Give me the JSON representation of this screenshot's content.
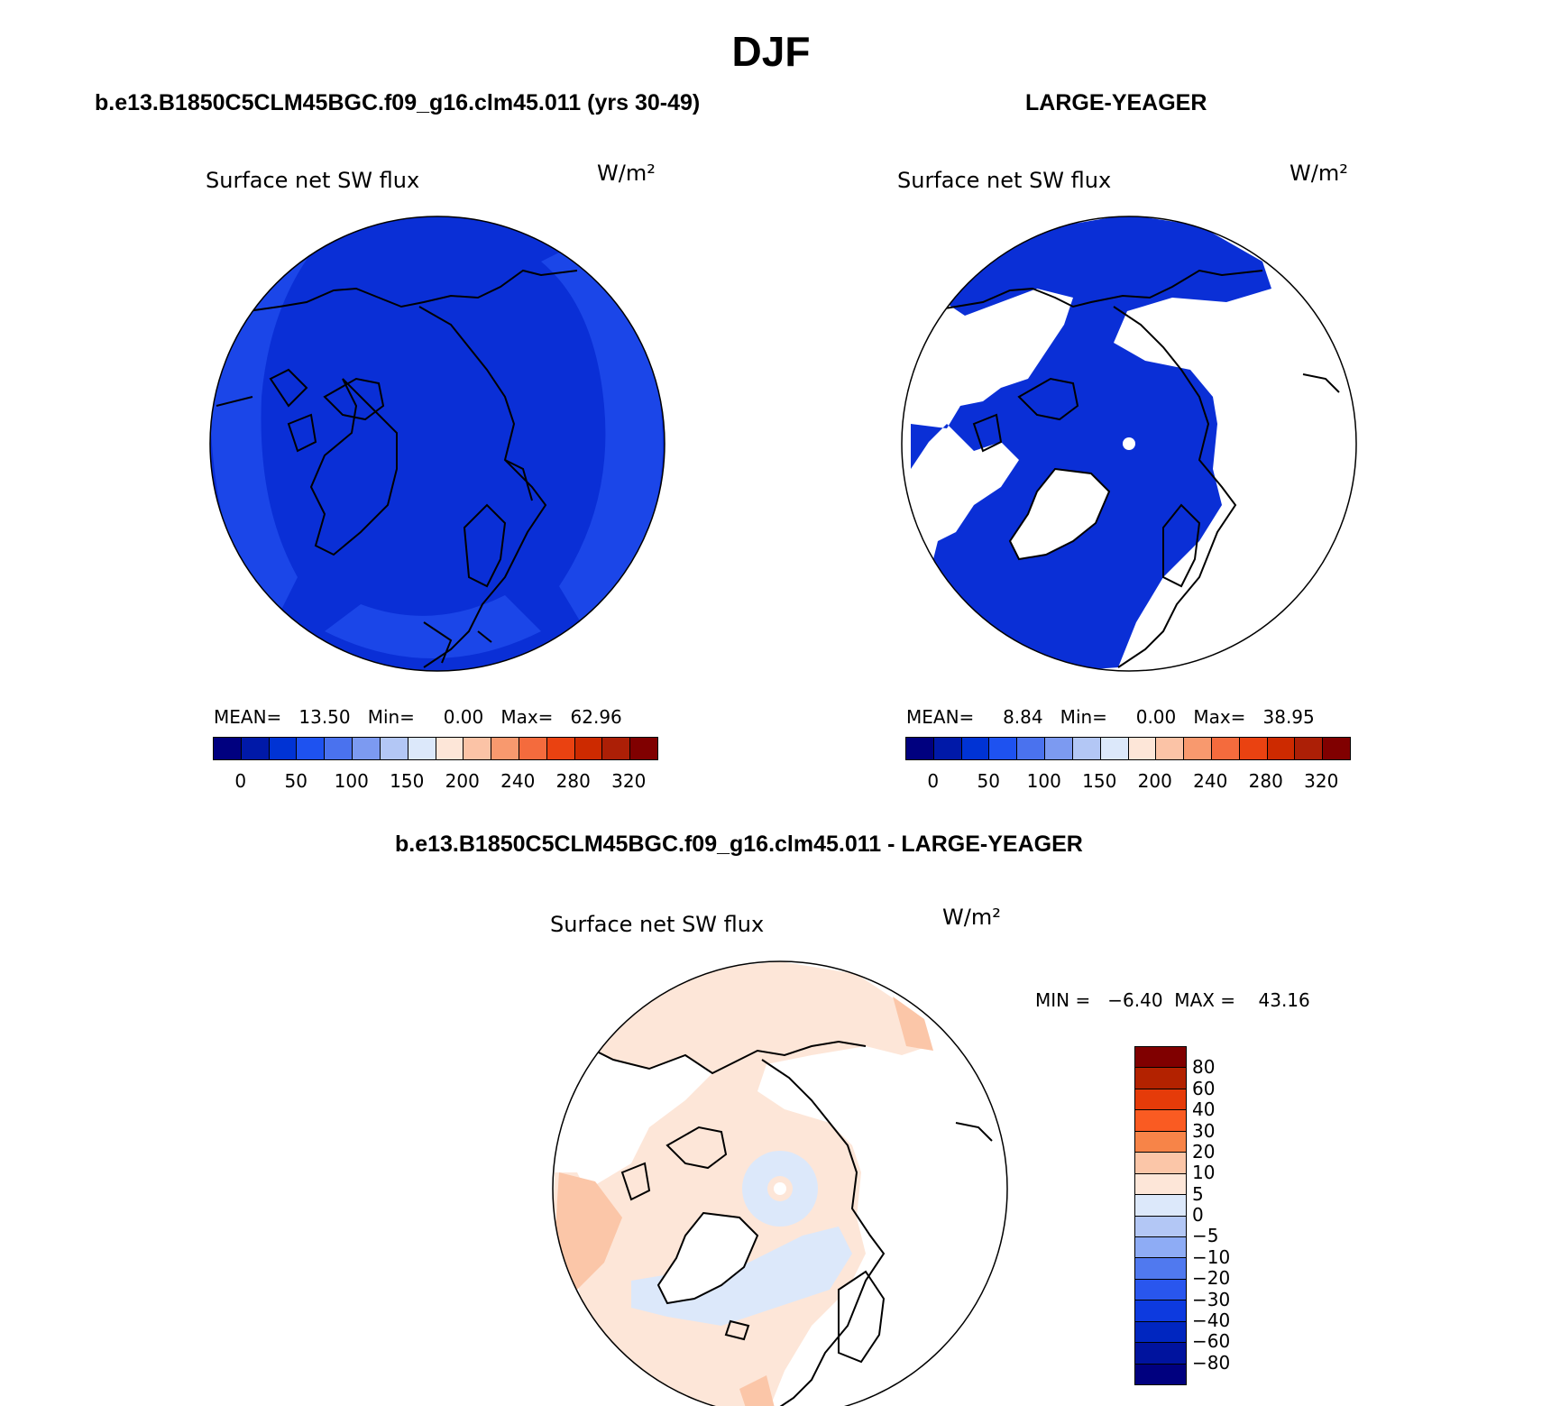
{
  "title": "DJF",
  "panels": [
    {
      "title": "b.e13.B1850C5CLM45BGC.f09_g16.clm45.011 (yrs 30-49)",
      "variable": "Surface net SW flux",
      "units": "W/m²",
      "stats_text": "MEAN=   13.50   Min=     0.00   Max=   62.96",
      "mean": 13.5,
      "min": 0.0,
      "max": 62.96
    },
    {
      "title": "LARGE-YEAGER",
      "variable": "Surface net SW flux",
      "units": "W/m²",
      "stats_text": "MEAN=     8.84   Min=     0.00   Max=   38.95",
      "mean": 8.84,
      "min": 0.0,
      "max": 38.95
    },
    {
      "title": "b.e13.B1850C5CLM45BGC.f09_g16.clm45.011 - LARGE-YEAGER",
      "variable": "Surface net SW flux",
      "units": "W/m²",
      "stats_text": "MIN =   −6.40  MAX =    43.16",
      "min": -6.4,
      "max": 43.16
    }
  ],
  "colorbar_abs": {
    "colors": [
      "#00007f",
      "#0019a8",
      "#0033d4",
      "#1e52f0",
      "#4a72ee",
      "#7c9af1",
      "#b3c7f5",
      "#dce8fa",
      "#fde6d8",
      "#fbc3a6",
      "#f8996e",
      "#f46b3d",
      "#ea4211",
      "#cd2a00",
      "#ac1f06",
      "#800000"
    ],
    "labels": [
      "0",
      "50",
      "100",
      "150",
      "200",
      "240",
      "280",
      "320"
    ]
  },
  "colorbar_diff": {
    "colors": [
      "#800000",
      "#b32200",
      "#e53b09",
      "#fa5b22",
      "#f78448",
      "#fbc6a8",
      "#fde6d8",
      "#dce8fa",
      "#b3c7f5",
      "#8eacf5",
      "#5079ef",
      "#2956ee",
      "#0d3adf",
      "#0026c0",
      "#00139e",
      "#00007f"
    ],
    "labels": [
      "80",
      "60",
      "40",
      "30",
      "20",
      "10",
      "5",
      "0",
      "−5",
      "−10",
      "−20",
      "−30",
      "−40",
      "−60",
      "−80"
    ]
  },
  "colors": {
    "field_blue": "#0a2fd6",
    "field_blue_light": "#1b46e8",
    "diff_pos": "#fde6d8",
    "diff_pos2": "#fbc6a8",
    "diff_pos3": "#f78448",
    "diff_neg": "#dce8fa",
    "missing": "#ffffff"
  }
}
